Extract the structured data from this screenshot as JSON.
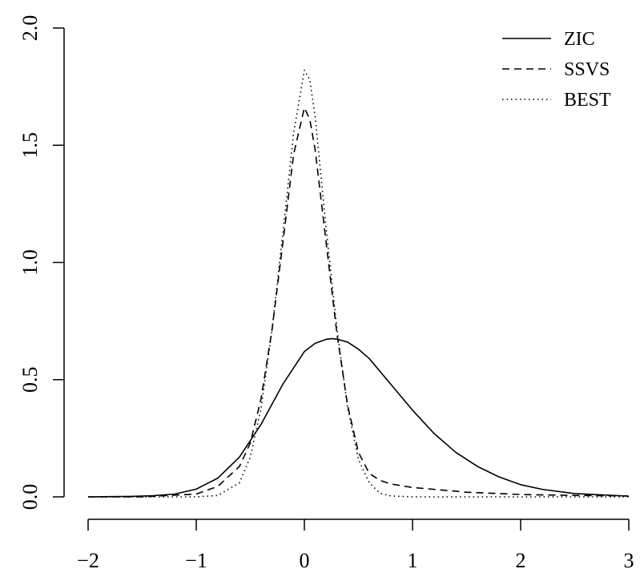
{
  "chart_data": {
    "type": "line",
    "title": "",
    "xlabel": "",
    "ylabel": "",
    "xlim": [
      -2,
      3
    ],
    "ylim": [
      0,
      2
    ],
    "x_ticks": [
      -2,
      -1,
      0,
      1,
      2,
      3
    ],
    "x_tick_labels": [
      "−2",
      "−1",
      "0",
      "1",
      "2",
      "3"
    ],
    "y_ticks": [
      0,
      0.5,
      1,
      1.5,
      2
    ],
    "y_tick_labels": [
      "0.0",
      "0.5",
      "1.0",
      "1.5",
      "2.0"
    ],
    "grid": false,
    "legend": {
      "position": "top-right"
    },
    "series": [
      {
        "name": "ZIC",
        "line_style": "solid",
        "color": "#000000",
        "x": [
          -2.0,
          -1.6,
          -1.4,
          -1.2,
          -1.0,
          -0.8,
          -0.6,
          -0.4,
          -0.2,
          0.0,
          0.1,
          0.2,
          0.25,
          0.3,
          0.4,
          0.5,
          0.6,
          0.8,
          1.0,
          1.2,
          1.4,
          1.6,
          1.8,
          2.0,
          2.2,
          2.5,
          3.0
        ],
        "y": [
          0.0,
          0.002,
          0.005,
          0.012,
          0.033,
          0.08,
          0.17,
          0.31,
          0.48,
          0.62,
          0.655,
          0.672,
          0.675,
          0.673,
          0.66,
          0.63,
          0.59,
          0.48,
          0.37,
          0.27,
          0.19,
          0.13,
          0.085,
          0.052,
          0.032,
          0.014,
          0.003
        ]
      },
      {
        "name": "SSVS",
        "line_style": "dashed",
        "color": "#000000",
        "x": [
          -2.0,
          -1.5,
          -1.0,
          -0.8,
          -0.6,
          -0.5,
          -0.4,
          -0.3,
          -0.2,
          -0.1,
          0.0,
          0.05,
          0.1,
          0.2,
          0.3,
          0.4,
          0.5,
          0.6,
          0.7,
          0.8,
          1.0,
          1.5,
          2.0,
          2.5,
          3.0
        ],
        "y": [
          0.0,
          0.0,
          0.012,
          0.045,
          0.13,
          0.23,
          0.42,
          0.71,
          1.08,
          1.46,
          1.66,
          1.61,
          1.48,
          1.09,
          0.7,
          0.39,
          0.19,
          0.1,
          0.07,
          0.055,
          0.04,
          0.02,
          0.01,
          0.006,
          0.004
        ]
      },
      {
        "name": "BEST",
        "line_style": "dotted",
        "color": "#000000",
        "x": [
          -2.0,
          -1.0,
          -0.8,
          -0.6,
          -0.5,
          -0.4,
          -0.3,
          -0.2,
          -0.1,
          0.0,
          0.05,
          0.1,
          0.2,
          0.3,
          0.4,
          0.5,
          0.6,
          0.7,
          0.8,
          1.0,
          1.5,
          2.0,
          3.0
        ],
        "y": [
          0.0,
          0.0,
          0.006,
          0.06,
          0.17,
          0.38,
          0.71,
          1.12,
          1.55,
          1.82,
          1.78,
          1.62,
          1.15,
          0.72,
          0.38,
          0.16,
          0.06,
          0.015,
          0.004,
          0.0,
          0.0,
          0.0,
          0.0
        ]
      }
    ]
  }
}
